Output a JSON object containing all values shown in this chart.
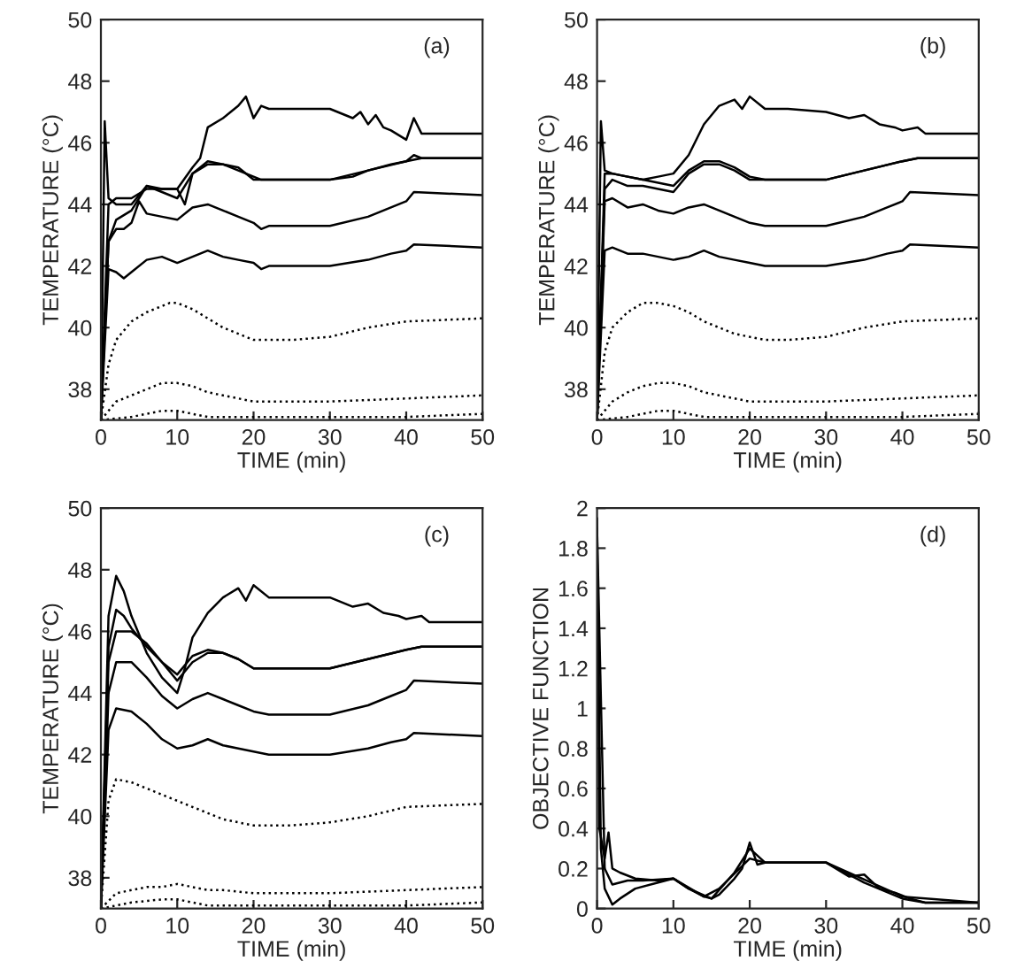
{
  "chart_data": [
    {
      "type": "line",
      "xlabel": "TIME (min)",
      "ylabel": "TEMPERATURE (°C)",
      "annotations": [
        "(a)"
      ],
      "xlim": [
        0,
        50
      ],
      "ylim": [
        37,
        50
      ],
      "xticks": [
        0,
        10,
        20,
        30,
        40,
        50
      ],
      "yticks": [
        38,
        40,
        42,
        44,
        46,
        48,
        50
      ],
      "series": [
        {
          "color": "#000000",
          "line_style": "solid",
          "x": [
            0,
            0.5,
            1,
            2,
            4,
            6,
            8,
            10,
            12,
            13,
            14,
            16,
            18,
            19,
            20,
            21,
            22,
            25,
            30,
            33,
            34,
            35,
            36,
            37,
            38,
            40,
            41,
            42,
            43,
            50
          ],
          "values": [
            37,
            46.7,
            44.2,
            44,
            44,
            44.6,
            44.5,
            44.5,
            45.2,
            45.5,
            46.5,
            46.8,
            47.2,
            47.5,
            46.8,
            47.2,
            47.1,
            47.1,
            47.1,
            46.8,
            47,
            46.6,
            46.9,
            46.5,
            46.4,
            46.1,
            46.8,
            46.3,
            46.3,
            46.3
          ]
        },
        {
          "color": "#000000",
          "line_style": "solid",
          "x": [
            0,
            1,
            2,
            4,
            6,
            8,
            10,
            11,
            12,
            14,
            16,
            18,
            19,
            20,
            21,
            22,
            25,
            30,
            33,
            35,
            38,
            40,
            41,
            42,
            50
          ],
          "values": [
            37,
            44,
            44.2,
            44.2,
            44.5,
            44.5,
            44.5,
            44,
            45,
            45.3,
            45.3,
            45.1,
            45,
            44.9,
            44.8,
            44.8,
            44.8,
            44.8,
            44.9,
            45.1,
            45.3,
            45.4,
            45.6,
            45.5,
            45.5
          ]
        },
        {
          "color": "#000000",
          "line_style": "solid",
          "x": [
            0,
            1,
            2,
            4,
            5,
            6,
            8,
            10,
            12,
            14,
            16,
            18,
            20,
            22,
            30,
            35,
            40,
            42,
            50
          ],
          "values": [
            37,
            42.8,
            43.5,
            43.8,
            44.2,
            44.6,
            44.4,
            44.2,
            45,
            45.4,
            45.3,
            45.2,
            44.8,
            44.8,
            44.8,
            45.1,
            45.4,
            45.5,
            45.5
          ]
        },
        {
          "color": "#000000",
          "line_style": "solid",
          "x": [
            0,
            1,
            2,
            3,
            4,
            5,
            6,
            8,
            10,
            12,
            14,
            16,
            18,
            20,
            21,
            22,
            25,
            30,
            35,
            38,
            40,
            41,
            50
          ],
          "values": [
            37,
            42.8,
            43.2,
            43.2,
            43.4,
            44.1,
            43.7,
            43.6,
            43.5,
            43.9,
            44,
            43.8,
            43.6,
            43.4,
            43.2,
            43.3,
            43.3,
            43.3,
            43.6,
            43.9,
            44.1,
            44.4,
            44.3
          ]
        },
        {
          "color": "#000000",
          "line_style": "solid",
          "x": [
            0,
            1,
            2,
            3,
            4,
            6,
            8,
            10,
            12,
            14,
            16,
            18,
            20,
            21,
            22,
            25,
            30,
            35,
            38,
            40,
            41,
            50
          ],
          "values": [
            37,
            41.9,
            41.8,
            41.6,
            41.8,
            42.2,
            42.3,
            42.1,
            42.3,
            42.5,
            42.3,
            42.2,
            42.1,
            41.9,
            42,
            42,
            42,
            42.2,
            42.4,
            42.5,
            42.7,
            42.6
          ]
        },
        {
          "color": "#000000",
          "line_style": "dotted",
          "x": [
            0,
            1,
            2,
            4,
            6,
            8,
            9,
            10,
            12,
            14,
            16,
            18,
            20,
            22,
            25,
            30,
            35,
            40,
            50
          ],
          "values": [
            37,
            38.8,
            39.6,
            40.2,
            40.5,
            40.7,
            40.8,
            40.8,
            40.6,
            40.3,
            40,
            39.8,
            39.6,
            39.6,
            39.6,
            39.7,
            40,
            40.2,
            40.3
          ]
        },
        {
          "color": "#000000",
          "line_style": "dotted",
          "x": [
            0,
            2,
            4,
            6,
            8,
            9,
            10,
            12,
            14,
            16,
            20,
            25,
            30,
            40,
            50
          ],
          "values": [
            37,
            37.6,
            37.8,
            38,
            38.2,
            38.2,
            38.2,
            38.1,
            37.9,
            37.8,
            37.6,
            37.6,
            37.6,
            37.7,
            37.8
          ]
        },
        {
          "color": "#000000",
          "line_style": "dotted",
          "x": [
            0,
            4,
            8,
            10,
            12,
            14,
            20,
            30,
            40,
            50
          ],
          "values": [
            37,
            37.1,
            37.3,
            37.3,
            37.2,
            37.1,
            37.1,
            37.1,
            37.1,
            37.2
          ]
        }
      ]
    },
    {
      "type": "line",
      "xlabel": "TIME (min)",
      "ylabel": "TEMPERATURE (°C)",
      "annotations": [
        "(b)"
      ],
      "xlim": [
        0,
        50
      ],
      "ylim": [
        37,
        50
      ],
      "xticks": [
        0,
        10,
        20,
        30,
        40,
        50
      ],
      "yticks": [
        38,
        40,
        42,
        44,
        46,
        48,
        50
      ],
      "series": [
        {
          "color": "#000000",
          "line_style": "solid",
          "x": [
            0,
            0.5,
            1,
            2,
            4,
            6,
            8,
            10,
            12,
            14,
            15,
            16,
            18,
            19,
            20,
            22,
            25,
            30,
            33,
            35,
            37,
            39,
            40,
            42,
            43,
            50
          ],
          "values": [
            37,
            46.7,
            45.1,
            45,
            44.9,
            44.8,
            44.9,
            45,
            45.6,
            46.6,
            46.9,
            47.2,
            47.4,
            47.1,
            47.5,
            47.1,
            47.1,
            47,
            46.8,
            46.9,
            46.6,
            46.5,
            46.4,
            46.5,
            46.3,
            46.3
          ]
        },
        {
          "color": "#000000",
          "line_style": "solid",
          "x": [
            0,
            1,
            2,
            4,
            6,
            8,
            10,
            12,
            14,
            16,
            18,
            20,
            22,
            25,
            30,
            35,
            40,
            42,
            50
          ],
          "values": [
            37,
            45,
            45,
            44.9,
            44.8,
            44.7,
            44.6,
            45.1,
            45.4,
            45.4,
            45.2,
            44.9,
            44.8,
            44.8,
            44.8,
            45.1,
            45.4,
            45.5,
            45.5
          ]
        },
        {
          "color": "#000000",
          "line_style": "solid",
          "x": [
            0,
            1,
            2,
            4,
            6,
            8,
            10,
            12,
            14,
            16,
            18,
            20,
            22,
            30,
            35,
            40,
            42,
            50
          ],
          "values": [
            37,
            44.5,
            44.8,
            44.6,
            44.6,
            44.5,
            44.4,
            45,
            45.3,
            45.3,
            45.1,
            44.8,
            44.8,
            44.8,
            45.1,
            45.4,
            45.5,
            45.5
          ]
        },
        {
          "color": "#000000",
          "line_style": "solid",
          "x": [
            0,
            1,
            2,
            4,
            6,
            8,
            10,
            12,
            14,
            16,
            18,
            20,
            22,
            25,
            30,
            35,
            38,
            40,
            41,
            50
          ],
          "values": [
            37,
            44.1,
            44.2,
            43.9,
            44,
            43.8,
            43.7,
            43.9,
            44,
            43.8,
            43.6,
            43.4,
            43.3,
            43.3,
            43.3,
            43.6,
            43.9,
            44.1,
            44.4,
            44.3
          ]
        },
        {
          "color": "#000000",
          "line_style": "solid",
          "x": [
            0,
            1,
            2,
            4,
            6,
            8,
            10,
            12,
            14,
            16,
            18,
            20,
            22,
            25,
            30,
            35,
            38,
            40,
            41,
            50
          ],
          "values": [
            37,
            42.5,
            42.6,
            42.4,
            42.4,
            42.3,
            42.2,
            42.3,
            42.5,
            42.3,
            42.2,
            42.1,
            42,
            42,
            42,
            42.2,
            42.4,
            42.5,
            42.7,
            42.6
          ]
        },
        {
          "color": "#000000",
          "line_style": "dotted",
          "x": [
            0,
            1,
            2,
            4,
            6,
            8,
            10,
            12,
            14,
            16,
            18,
            20,
            22,
            25,
            30,
            35,
            40,
            50
          ],
          "values": [
            37,
            39.2,
            40,
            40.5,
            40.8,
            40.8,
            40.7,
            40.5,
            40.2,
            40,
            39.8,
            39.7,
            39.6,
            39.6,
            39.7,
            40,
            40.2,
            40.3
          ]
        },
        {
          "color": "#000000",
          "line_style": "dotted",
          "x": [
            0,
            2,
            4,
            6,
            8,
            10,
            12,
            14,
            16,
            20,
            25,
            30,
            40,
            50
          ],
          "values": [
            37,
            37.6,
            37.9,
            38.1,
            38.2,
            38.2,
            38.1,
            37.9,
            37.8,
            37.6,
            37.6,
            37.6,
            37.7,
            37.8
          ]
        },
        {
          "color": "#000000",
          "line_style": "dotted",
          "x": [
            0,
            4,
            8,
            10,
            12,
            14,
            20,
            30,
            40,
            50
          ],
          "values": [
            37,
            37.1,
            37.3,
            37.3,
            37.2,
            37.1,
            37.1,
            37.1,
            37.1,
            37.2
          ]
        }
      ]
    },
    {
      "type": "line",
      "xlabel": "TIME (min)",
      "ylabel": "TEMPERATURE (°C)",
      "annotations": [
        "(c)"
      ],
      "xlim": [
        0,
        50
      ],
      "ylim": [
        37,
        50
      ],
      "xticks": [
        0,
        10,
        20,
        30,
        40,
        50
      ],
      "yticks": [
        38,
        40,
        42,
        44,
        46,
        48,
        50
      ],
      "series": [
        {
          "color": "#000000",
          "line_style": "solid",
          "x": [
            0,
            1,
            2,
            3,
            4,
            6,
            8,
            10,
            11,
            12,
            14,
            16,
            18,
            19,
            20,
            22,
            25,
            30,
            33,
            35,
            37,
            39,
            40,
            42,
            43,
            50
          ],
          "values": [
            37,
            46.5,
            47.8,
            47.3,
            46.5,
            45.3,
            44.5,
            44,
            44.8,
            45.8,
            46.6,
            47.1,
            47.4,
            47,
            47.5,
            47.1,
            47.1,
            47.1,
            46.8,
            46.9,
            46.6,
            46.5,
            46.4,
            46.5,
            46.3,
            46.3
          ]
        },
        {
          "color": "#000000",
          "line_style": "solid",
          "x": [
            0,
            1,
            2,
            3,
            4,
            6,
            8,
            10,
            12,
            14,
            16,
            18,
            20,
            22,
            30,
            35,
            40,
            42,
            50
          ],
          "values": [
            37,
            45.5,
            46.7,
            46.5,
            46.1,
            45.5,
            45,
            44.6,
            45.2,
            45.4,
            45.3,
            45.1,
            44.8,
            44.8,
            44.8,
            45.1,
            45.4,
            45.5,
            45.5
          ]
        },
        {
          "color": "#000000",
          "line_style": "solid",
          "x": [
            0,
            1,
            2,
            4,
            6,
            8,
            10,
            12,
            14,
            16,
            18,
            20,
            22,
            30,
            35,
            40,
            42,
            50
          ],
          "values": [
            37,
            45,
            46,
            46,
            45.6,
            45,
            44.4,
            45,
            45.3,
            45.3,
            45.1,
            44.8,
            44.8,
            44.8,
            45.1,
            45.4,
            45.5,
            45.5
          ]
        },
        {
          "color": "#000000",
          "line_style": "solid",
          "x": [
            0,
            1,
            2,
            4,
            6,
            8,
            10,
            12,
            14,
            16,
            18,
            20,
            22,
            25,
            30,
            35,
            38,
            40,
            41,
            50
          ],
          "values": [
            37,
            44,
            45,
            45,
            44.5,
            43.9,
            43.5,
            43.8,
            44,
            43.8,
            43.6,
            43.4,
            43.3,
            43.3,
            43.3,
            43.6,
            43.9,
            44.1,
            44.4,
            44.3
          ]
        },
        {
          "color": "#000000",
          "line_style": "solid",
          "x": [
            0,
            1,
            2,
            4,
            6,
            8,
            10,
            12,
            14,
            16,
            18,
            20,
            22,
            25,
            30,
            35,
            38,
            40,
            41,
            50
          ],
          "values": [
            37,
            42.8,
            43.5,
            43.4,
            43,
            42.5,
            42.2,
            42.3,
            42.5,
            42.3,
            42.2,
            42.1,
            42,
            42,
            42,
            42.2,
            42.4,
            42.5,
            42.7,
            42.6
          ]
        },
        {
          "color": "#000000",
          "line_style": "dotted",
          "x": [
            0,
            1,
            2,
            4,
            6,
            8,
            10,
            12,
            14,
            16,
            18,
            20,
            22,
            25,
            30,
            35,
            40,
            50
          ],
          "values": [
            37,
            40.5,
            41.2,
            41.1,
            40.9,
            40.7,
            40.5,
            40.3,
            40.1,
            39.9,
            39.8,
            39.7,
            39.7,
            39.7,
            39.8,
            40,
            40.3,
            40.4
          ]
        },
        {
          "color": "#000000",
          "line_style": "dotted",
          "x": [
            0,
            2,
            4,
            6,
            8,
            10,
            12,
            14,
            16,
            20,
            25,
            30,
            40,
            50
          ],
          "values": [
            37,
            37.5,
            37.6,
            37.7,
            37.7,
            37.8,
            37.7,
            37.6,
            37.6,
            37.5,
            37.5,
            37.5,
            37.6,
            37.7
          ]
        },
        {
          "color": "#000000",
          "line_style": "dotted",
          "x": [
            0,
            4,
            8,
            10,
            12,
            14,
            20,
            30,
            40,
            50
          ],
          "values": [
            37,
            37.2,
            37.3,
            37.3,
            37.2,
            37.1,
            37.1,
            37.1,
            37.1,
            37.2
          ]
        }
      ]
    },
    {
      "type": "line",
      "xlabel": "TIME (min)",
      "ylabel": "OBJECTIVE FUNCTION",
      "annotations": [
        "(d)"
      ],
      "xlim": [
        0,
        50
      ],
      "ylim": [
        0,
        2
      ],
      "xticks": [
        0,
        10,
        20,
        30,
        40,
        50
      ],
      "yticks": [
        0,
        0.2,
        0.4,
        0.6,
        0.8,
        1,
        1.2,
        1.4,
        1.6,
        1.8,
        2
      ],
      "series": [
        {
          "color": "#000000",
          "line_style": "solid",
          "x": [
            0,
            0.3,
            1,
            1.5,
            2,
            3,
            5,
            8,
            10,
            12,
            14,
            15,
            16,
            18,
            19,
            20,
            21,
            22,
            25,
            30,
            33,
            35,
            37,
            39,
            41,
            43,
            50
          ],
          "values": [
            1.95,
            0.4,
            0.25,
            0.38,
            0.2,
            0.18,
            0.15,
            0.14,
            0.15,
            0.1,
            0.06,
            0.05,
            0.07,
            0.15,
            0.2,
            0.33,
            0.22,
            0.23,
            0.23,
            0.23,
            0.16,
            0.17,
            0.1,
            0.08,
            0.05,
            0.03,
            0.03
          ]
        },
        {
          "color": "#000000",
          "line_style": "solid",
          "x": [
            0,
            0.5,
            1,
            2,
            3,
            5,
            8,
            10,
            12,
            15,
            18,
            20,
            22,
            30,
            35,
            40,
            43,
            50
          ],
          "values": [
            1.8,
            0.3,
            0.1,
            0.02,
            0.05,
            0.1,
            0.13,
            0.15,
            0.1,
            0.05,
            0.18,
            0.3,
            0.23,
            0.23,
            0.13,
            0.05,
            0.03,
            0.03
          ]
        },
        {
          "color": "#000000",
          "line_style": "solid",
          "x": [
            0,
            1,
            2,
            4,
            6,
            10,
            14,
            16,
            20,
            22,
            30,
            40,
            50
          ],
          "values": [
            1.9,
            0.2,
            0.12,
            0.14,
            0.14,
            0.15,
            0.06,
            0.1,
            0.25,
            0.23,
            0.23,
            0.06,
            0.03
          ]
        }
      ]
    }
  ]
}
